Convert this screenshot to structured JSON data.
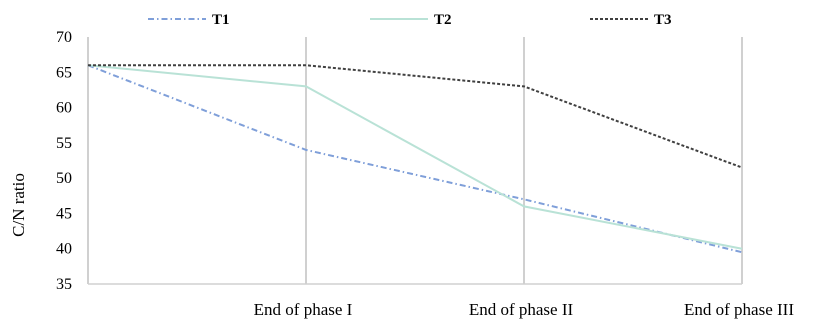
{
  "chart_data": {
    "type": "line",
    "title": "",
    "xlabel": "",
    "ylabel": "C/N ratio",
    "categories": [
      "",
      "End of phase I",
      "End of phase II",
      "End of phase III"
    ],
    "ylim": [
      35,
      70
    ],
    "yticks": [
      35,
      40,
      45,
      50,
      55,
      60,
      65,
      70
    ],
    "grid": "vertical",
    "legend_position": "top",
    "series": [
      {
        "name": "T1",
        "values": [
          66,
          54,
          47,
          39.5
        ],
        "color": "#7f9fd9",
        "style": "dash-dot"
      },
      {
        "name": "T2",
        "values": [
          66,
          63,
          46,
          40
        ],
        "color": "#b9e2d6",
        "style": "solid"
      },
      {
        "name": "T3",
        "values": [
          66,
          66,
          63,
          51.5
        ],
        "color": "#404040",
        "style": "dotted"
      }
    ]
  }
}
